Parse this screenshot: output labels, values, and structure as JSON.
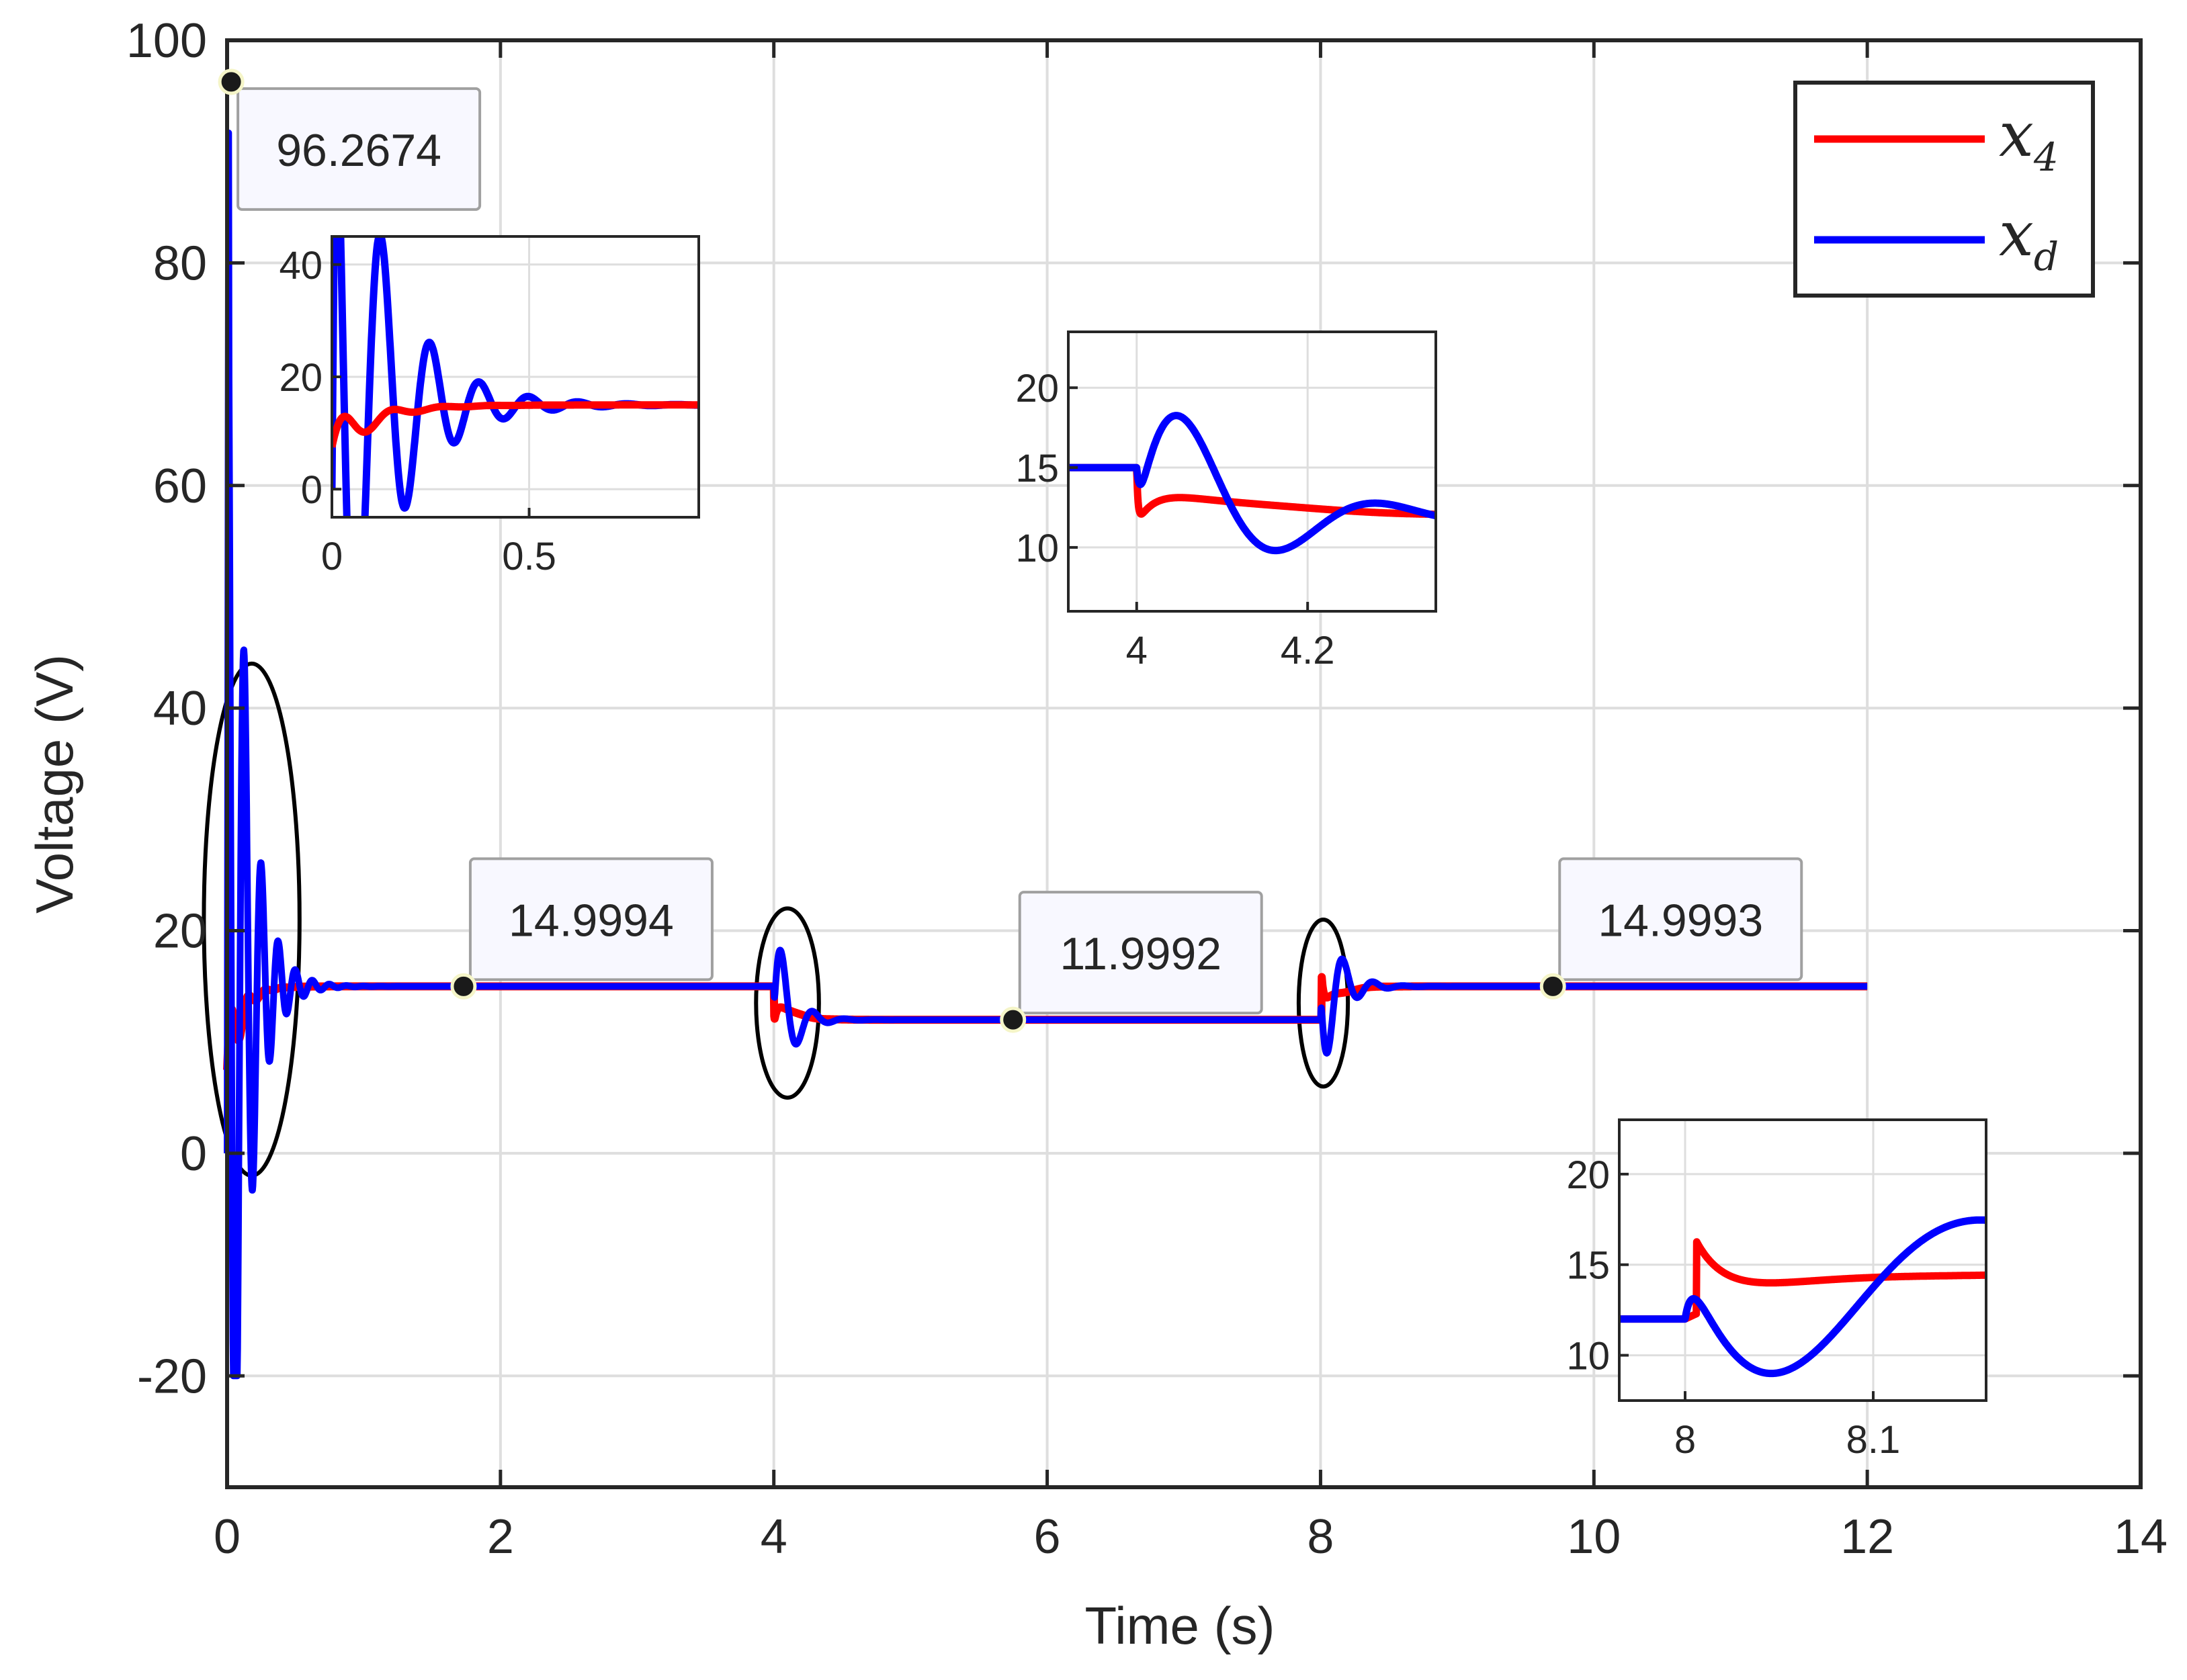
{
  "chart_data": {
    "type": "line",
    "xlabel": "Time (s)",
    "ylabel": "Voltage (V)",
    "xlim": [
      0,
      14
    ],
    "ylim": [
      -30,
      100
    ],
    "xticks": [
      0,
      2,
      4,
      6,
      8,
      10,
      12,
      14
    ],
    "yticks": [
      -20,
      0,
      20,
      40,
      60,
      80,
      100
    ],
    "grid": true,
    "legend_position": "top-right",
    "colors": {
      "x4": "#ff0000",
      "xd": "#0000ff"
    },
    "legend": {
      "x4": {
        "base": "x",
        "sub": "4"
      },
      "xd": {
        "base": "x",
        "sub": "d"
      }
    },
    "series": [
      {
        "key": "x4",
        "name": "x4",
        "segments": [
          {
            "t0": 0.0,
            "t1": 4.0,
            "start": 7.5,
            "target": 15.0,
            "amp": 5.0,
            "freq": 8.0,
            "damp": 12.0
          },
          {
            "t0": 4.0,
            "t1": 8.0,
            "start": 15.0,
            "target": 12.0,
            "amp": -0.4,
            "freq": 3.5,
            "damp": 9.0,
            "drop": 3.5
          },
          {
            "t0": 8.0,
            "t1": 12.0,
            "start": 12.0,
            "target": 15.0,
            "amp": 1.1,
            "freq": 3.0,
            "damp": 10.0,
            "jump": 4.0
          }
        ]
      },
      {
        "key": "xd",
        "name": "xd",
        "segments": [
          {
            "t0": 0.0,
            "t1": 4.0,
            "target": 15.0,
            "peak": 96.2674,
            "trough": -20.0,
            "amp": 35.0,
            "freq": 8.0,
            "damp": 8.0
          },
          {
            "t0": 4.0,
            "t1": 8.0,
            "target": 12.0,
            "amp": 10.0,
            "freq": 4.3,
            "damp": 9.0,
            "phase": -1.0
          },
          {
            "t0": 8.0,
            "t1": 12.0,
            "target": 15.0,
            "amp": -9.0,
            "freq": 4.5,
            "damp": 8.0,
            "phase": -1.0
          }
        ]
      }
    ],
    "datatips": [
      {
        "x": 0.03,
        "y": 96.2674,
        "label": "96.2674"
      },
      {
        "x": 1.73,
        "y": 14.9994,
        "label": "14.9994"
      },
      {
        "x": 5.75,
        "y": 11.9992,
        "label": "11.9992"
      },
      {
        "x": 9.7,
        "y": 14.9993,
        "label": "14.9993"
      }
    ],
    "highlight_ellipses": [
      {
        "cx": 0.18,
        "cy": 21.0,
        "rx": 0.35,
        "ry": 23.0
      },
      {
        "cx": 4.1,
        "cy": 13.5,
        "rx": 0.23,
        "ry": 8.5
      },
      {
        "cx": 8.02,
        "cy": 13.5,
        "rx": 0.18,
        "ry": 7.5
      }
    ],
    "insets": [
      {
        "xlim": [
          0,
          0.93
        ],
        "ylim": [
          -5,
          45
        ],
        "xticks": [
          0,
          0.5
        ],
        "xtick_labels": [
          "0",
          "0.5"
        ],
        "yticks": [
          0,
          20,
          40
        ],
        "ytick_labels": [
          "0",
          "20",
          "40"
        ],
        "seg_x4": 0,
        "seg_xd": 0
      },
      {
        "xlim": [
          3.92,
          4.35
        ],
        "ylim": [
          6,
          23.5
        ],
        "xticks": [
          4.0,
          4.2
        ],
        "xtick_labels": [
          "4",
          "4.2"
        ],
        "yticks": [
          10,
          15,
          20
        ],
        "ytick_labels": [
          "10",
          "15",
          "20"
        ],
        "seg_x4": 1,
        "seg_xd": 1
      },
      {
        "xlim": [
          7.965,
          8.16
        ],
        "ylim": [
          7.5,
          23
        ],
        "xticks": [
          8.0,
          8.1
        ],
        "xtick_labels": [
          "8",
          "8.1"
        ],
        "yticks": [
          10,
          15,
          20
        ],
        "ytick_labels": [
          "10",
          "15",
          "20"
        ],
        "seg_x4": 2,
        "seg_xd": 2
      }
    ]
  }
}
